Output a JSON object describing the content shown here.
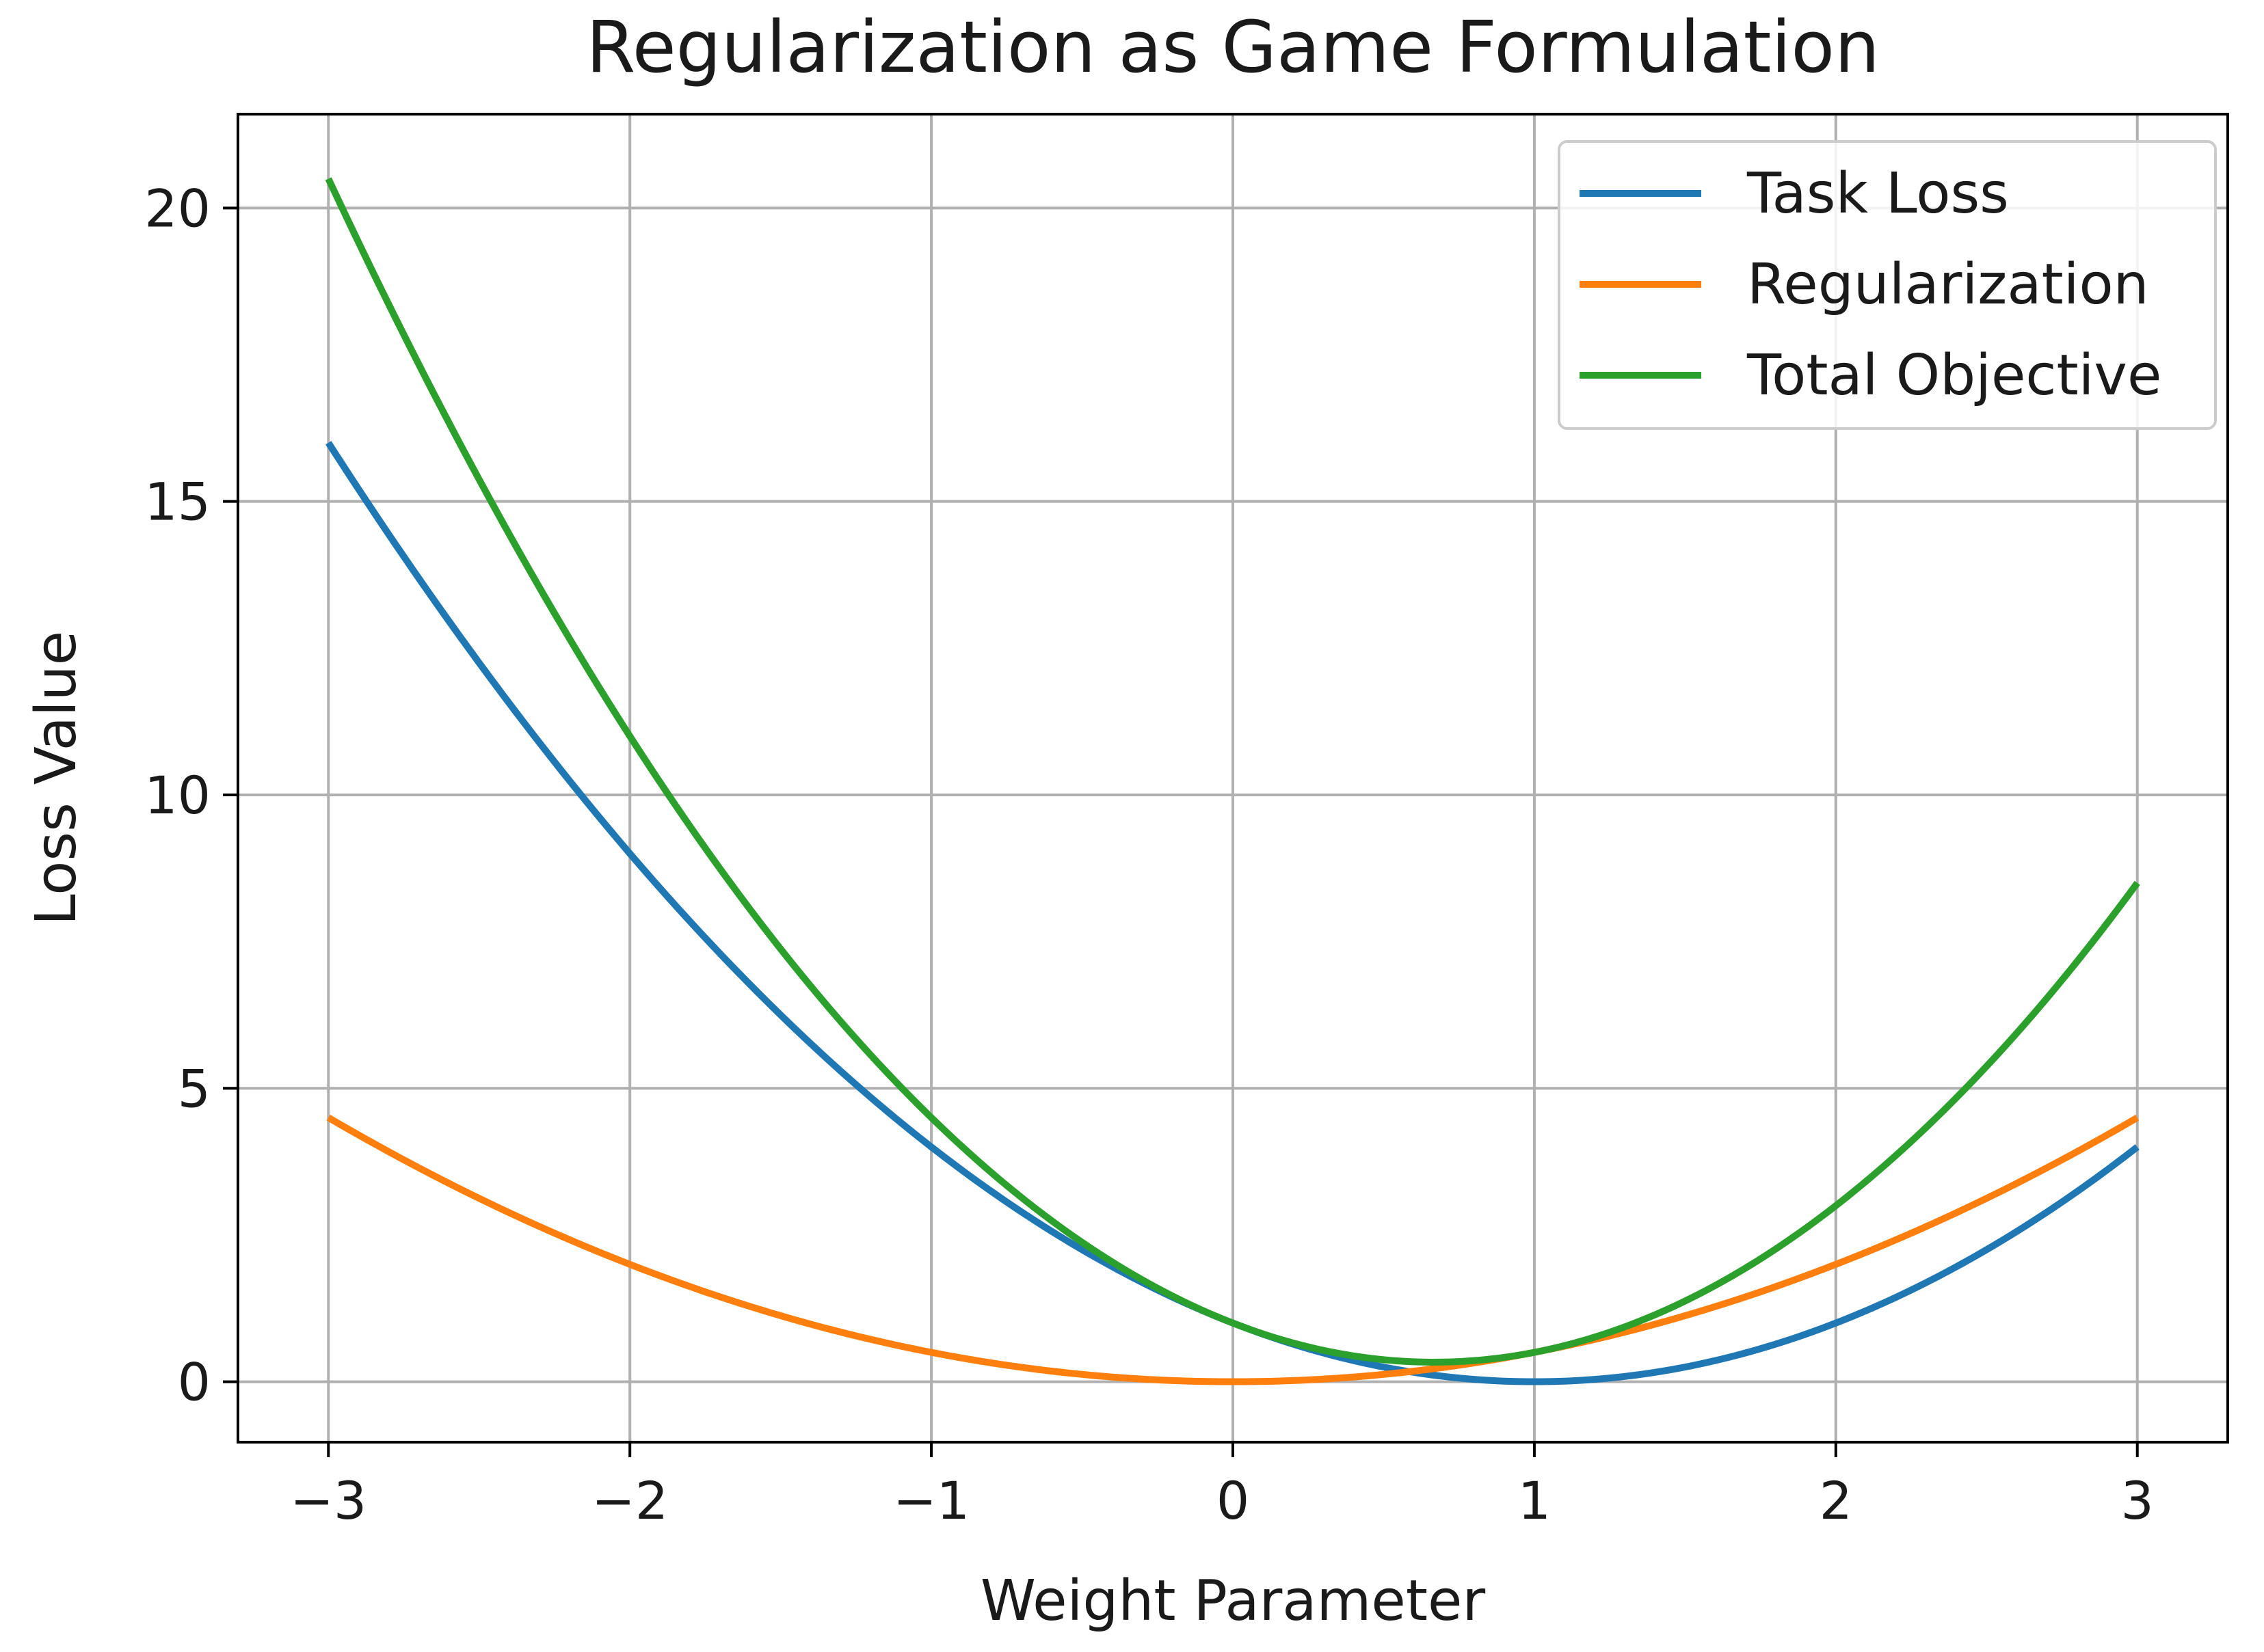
{
  "chart_data": {
    "type": "line",
    "title": "Regularization as Game Formulation",
    "xlabel": "Weight Parameter",
    "ylabel": "Loss Value",
    "xlim": [
      -3.3,
      3.3
    ],
    "ylim": [
      -1.03,
      21.6
    ],
    "x_ticks": [
      -3,
      -2,
      -1,
      0,
      1,
      2,
      3
    ],
    "x_tick_labels": [
      "−3",
      "−2",
      "−1",
      "0",
      "1",
      "2",
      "3"
    ],
    "y_ticks": [
      0,
      5,
      10,
      15,
      20
    ],
    "y_tick_labels": [
      "0",
      "5",
      "10",
      "15",
      "20"
    ],
    "grid": true,
    "legend_position": "upper-right",
    "x_range": [
      -3,
      3
    ],
    "series": [
      {
        "name": "Task Loss",
        "color": "#1f77b4",
        "x": [
          -3,
          -2.5,
          -2,
          -1.5,
          -1,
          -0.5,
          0,
          0.5,
          1,
          1.5,
          2,
          2.5,
          3
        ],
        "values": [
          16,
          12.25,
          9,
          6.25,
          4,
          2.25,
          1,
          0.25,
          0,
          0.25,
          1,
          2.25,
          4
        ]
      },
      {
        "name": "Regularization",
        "color": "#ff7f0e",
        "x": [
          -3,
          -2.5,
          -2,
          -1.5,
          -1,
          -0.5,
          0,
          0.5,
          1,
          1.5,
          2,
          2.5,
          3
        ],
        "values": [
          4.5,
          3.125,
          2,
          1.125,
          0.5,
          0.125,
          0,
          0.125,
          0.5,
          1.125,
          2,
          3.125,
          4.5
        ]
      },
      {
        "name": "Total Objective",
        "color": "#2ca02c",
        "x": [
          -3,
          -2.5,
          -2,
          -1.5,
          -1,
          -0.5,
          0,
          0.5,
          1,
          1.5,
          2,
          2.5,
          3
        ],
        "values": [
          20.5,
          15.375,
          11,
          7.375,
          4.5,
          2.375,
          1,
          0.375,
          0.5,
          1.375,
          3,
          5.375,
          8.5
        ]
      }
    ]
  }
}
